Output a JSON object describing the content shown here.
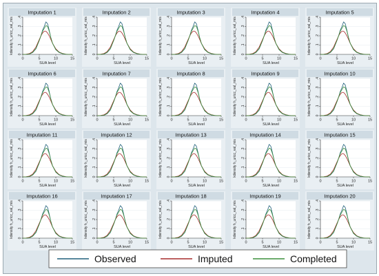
{
  "chart_data": {
    "type": "line",
    "layout": {
      "rows": 4,
      "cols": 5
    },
    "panel_titles": [
      "Imputation 1",
      "Imputation 2",
      "Imputation 3",
      "Imputation 4",
      "Imputation 5",
      "Imputation 6",
      "Imputation 7",
      "Imputation 8",
      "Imputation 9",
      "Imputation 10",
      "Imputation 11",
      "Imputation 12",
      "Imputation 13",
      "Imputation 14",
      "Imputation 15",
      "Imputation 16",
      "Imputation 17",
      "Imputation 18",
      "Imputation 19",
      "Imputation 20"
    ],
    "xlabel": "SUA level",
    "ylabel": "kdensity h_uricc_val_mis",
    "xlim": [
      0,
      15
    ],
    "ylim": [
      0,
      0.4
    ],
    "xticks": [
      0,
      5,
      10,
      15
    ],
    "yticks": [
      0,
      0.1,
      0.2,
      0.3,
      0.4
    ],
    "ytick_labels": [
      "0",
      ".1",
      ".2",
      ".3",
      ".4"
    ],
    "x": [
      0,
      1,
      2,
      3,
      4,
      5,
      5.5,
      6,
      6.5,
      7,
      7.5,
      8,
      8.5,
      9,
      10,
      11,
      12,
      13,
      14,
      15
    ],
    "series": [
      {
        "name": "Observed",
        "color": "#1f5f7a",
        "values": [
          0,
          0,
          0.003,
          0.02,
          0.06,
          0.15,
          0.2,
          0.26,
          0.3,
          0.35,
          0.33,
          0.26,
          0.18,
          0.12,
          0.05,
          0.02,
          0.007,
          0.002,
          0,
          0
        ]
      },
      {
        "name": "Imputed",
        "color": "#a52a2a",
        "values": [
          0,
          0.002,
          0.008,
          0.03,
          0.08,
          0.16,
          0.2,
          0.23,
          0.25,
          0.25,
          0.23,
          0.2,
          0.16,
          0.12,
          0.06,
          0.025,
          0.01,
          0.003,
          0,
          0
        ]
      },
      {
        "name": "Completed",
        "color": "#3a8f3a",
        "values": [
          0,
          0,
          0.004,
          0.022,
          0.065,
          0.15,
          0.2,
          0.25,
          0.28,
          0.31,
          0.3,
          0.25,
          0.18,
          0.12,
          0.052,
          0.022,
          0.008,
          0.002,
          0,
          0
        ]
      }
    ],
    "legend": {
      "position": "bottom",
      "entries": [
        "Observed",
        "Imputed",
        "Completed"
      ]
    }
  }
}
